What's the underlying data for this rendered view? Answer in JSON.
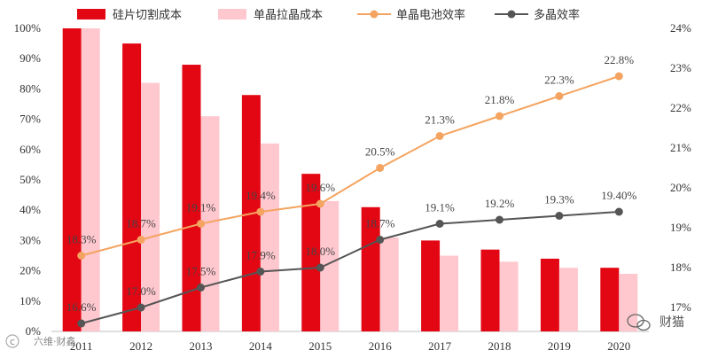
{
  "chart_data": {
    "type": "bar+line",
    "title": "",
    "categories": [
      "2011",
      "2012",
      "2013",
      "2014",
      "2015",
      "2016",
      "2017",
      "2018",
      "2019",
      "2020"
    ],
    "bar_series": [
      {
        "name": "硅片切割成本",
        "color": "#E30613",
        "values": [
          100,
          95,
          88,
          78,
          52,
          41,
          30,
          27,
          24,
          21
        ]
      },
      {
        "name": "单晶拉晶成本",
        "color": "#FFC7CE",
        "values": [
          100,
          82,
          71,
          62,
          43,
          31,
          25,
          23,
          21,
          19
        ]
      }
    ],
    "line_series": [
      {
        "name": "单晶电池效率",
        "color": "#F4A460",
        "values": [
          18.3,
          18.7,
          19.1,
          19.4,
          19.6,
          20.5,
          21.3,
          21.8,
          22.3,
          22.8
        ],
        "labels": [
          "18.3%",
          "18.7%",
          "19.1%",
          "19.4%",
          "19.6%",
          "20.5%",
          "21.3%",
          "21.8%",
          "22.3%",
          "22.8%"
        ]
      },
      {
        "name": "多晶效率",
        "color": "#555555",
        "values": [
          16.6,
          17.0,
          17.5,
          17.9,
          18.0,
          18.7,
          19.1,
          19.2,
          19.3,
          19.4
        ],
        "labels": [
          "16.6%",
          "17.0%",
          "17.5%",
          "17.9%",
          "18.0%",
          "18.7%",
          "19.1%",
          "19.2%",
          "19.3%",
          "19.40%"
        ]
      }
    ],
    "y_left": {
      "min": 0,
      "max": 100,
      "step": 10,
      "ticks": [
        "0%",
        "10%",
        "20%",
        "30%",
        "40%",
        "50%",
        "60%",
        "70%",
        "80%",
        "90%",
        "100%"
      ]
    },
    "y_right": {
      "min": 16.4,
      "max": 24,
      "step": 1,
      "ticks": [
        "17%",
        "18%",
        "19%",
        "20%",
        "21%",
        "22%",
        "23%",
        "24%"
      ]
    },
    "legend_position": "top"
  },
  "watermarks": {
    "left_text": "六维·财鑫",
    "right_text": "财猫"
  }
}
